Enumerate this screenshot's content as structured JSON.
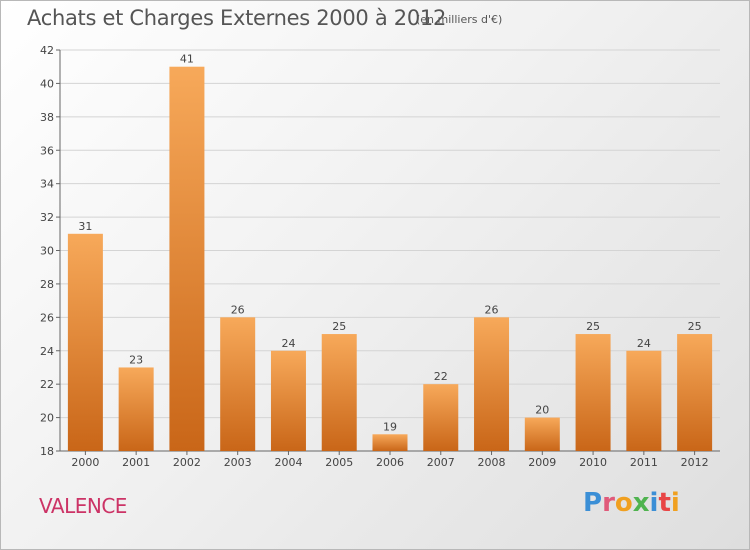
{
  "header": {
    "title": "Achats et Charges Externes 2000 à 2012",
    "subtitle": "(en milliers d'€)"
  },
  "footer": {
    "town": "VALENCE",
    "logo_letters": [
      "P",
      "r",
      "o",
      "x",
      "i",
      "t",
      "i"
    ]
  },
  "colors": {
    "bar_light": "#f7a95a",
    "bar_dark": "#c96618",
    "grid": "#d4d4d4",
    "town": "#cc3366"
  },
  "chart_data": {
    "type": "bar",
    "title": "Achats et Charges Externes 2000 à 2012",
    "subtitle": "(en milliers d'€)",
    "categories": [
      "2000",
      "2001",
      "2002",
      "2003",
      "2004",
      "2005",
      "2006",
      "2007",
      "2008",
      "2009",
      "2010",
      "2011",
      "2012"
    ],
    "values": [
      31,
      23,
      41,
      26,
      24,
      25,
      19,
      22,
      26,
      20,
      25,
      24,
      25
    ],
    "ylim": [
      18,
      42
    ],
    "yticks": [
      18,
      20,
      22,
      24,
      26,
      28,
      30,
      32,
      34,
      36,
      38,
      40,
      42
    ],
    "grid": true,
    "data_labels": true
  }
}
